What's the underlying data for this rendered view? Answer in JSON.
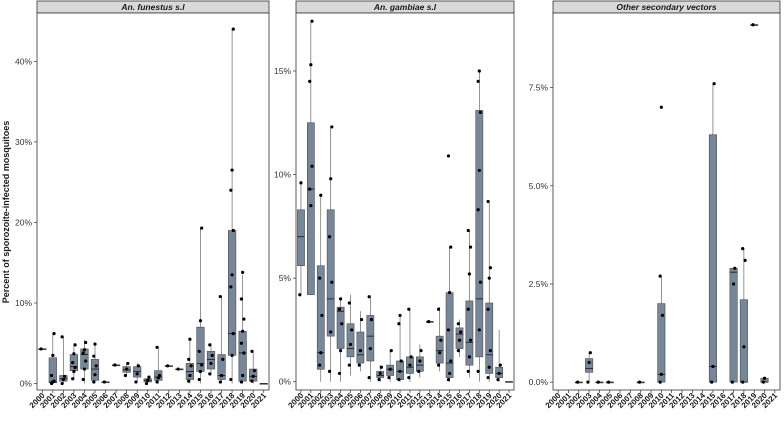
{
  "chart_data": {
    "type": "box",
    "ylabel": "Percent of sporozoite-infected mosquitoes",
    "xlabel": "",
    "box_color": "#76879a",
    "panels": [
      {
        "title": "An. funestus s.l",
        "ylim": [
          -0.8,
          46
        ],
        "yticks": [
          0,
          10,
          20,
          30,
          40
        ],
        "ytick_labels": [
          "0%",
          "10%",
          "20%",
          "30%",
          "40%"
        ],
        "categories": [
          "2000",
          "2001",
          "2002",
          "2003",
          "2004",
          "2005",
          "2006",
          "2007",
          "2008",
          "2009",
          "2010",
          "2011",
          "2012",
          "2013",
          "2014",
          "2015",
          "2016",
          "2017",
          "2018",
          "2019",
          "2020",
          "2021"
        ],
        "boxes": [
          {
            "x": "2000",
            "min": 4.3,
            "q1": 4.3,
            "median": 4.3,
            "q3": 4.3,
            "max": 4.3,
            "points": [
              4.3
            ]
          },
          {
            "x": "2001",
            "min": 0,
            "q1": 0.1,
            "median": 0.2,
            "q3": 3.2,
            "max": 6.2,
            "points": [
              0,
              0.2,
              0.3,
              1.0,
              3.5,
              6.2
            ]
          },
          {
            "x": "2002",
            "min": 0,
            "q1": 0.3,
            "median": 0.6,
            "q3": 1.0,
            "max": 5.8,
            "points": [
              0,
              0.5,
              0.9,
              5.8
            ]
          },
          {
            "x": "2003",
            "min": 0.5,
            "q1": 1.6,
            "median": 2.1,
            "q3": 3.6,
            "max": 5.0,
            "points": [
              0.6,
              1.5,
              2.0,
              2.6,
              3.7,
              4.8
            ]
          },
          {
            "x": "2004",
            "min": 0,
            "q1": 1.8,
            "median": 3.6,
            "q3": 4.3,
            "max": 5.4,
            "points": [
              0.5,
              1.8,
              2.8,
              3.8,
              4.2,
              5.1
            ]
          },
          {
            "x": "2005",
            "min": 0,
            "q1": 0.4,
            "median": 1.8,
            "q3": 3.0,
            "max": 5.1,
            "points": [
              0.2,
              1.1,
              2.2,
              3.4,
              4.9
            ]
          },
          {
            "x": "2006",
            "min": 0.2,
            "q1": 0.2,
            "median": 0.2,
            "q3": 0.2,
            "max": 0.2,
            "points": [
              0.2
            ]
          },
          {
            "x": "2007",
            "min": 2.3,
            "q1": 2.3,
            "median": 2.3,
            "q3": 2.3,
            "max": 2.3,
            "points": [
              2.3
            ]
          },
          {
            "x": "2008",
            "min": 1.0,
            "q1": 1.4,
            "median": 1.7,
            "q3": 2.1,
            "max": 2.5,
            "points": [
              1.0,
              1.8,
              2.5
            ]
          },
          {
            "x": "2009",
            "min": 0.2,
            "q1": 0.8,
            "median": 1.5,
            "q3": 2.1,
            "max": 2.5,
            "points": [
              0.2,
              1.2,
              2.2
            ]
          },
          {
            "x": "2010",
            "min": 0,
            "q1": 0.2,
            "median": 0.4,
            "q3": 0.6,
            "max": 0.8,
            "points": [
              0,
              0.4,
              0.8
            ]
          },
          {
            "x": "2011",
            "min": 0,
            "q1": 0.4,
            "median": 0.8,
            "q3": 1.6,
            "max": 4.6,
            "points": [
              0.2,
              0.7,
              1.0,
              4.5
            ]
          },
          {
            "x": "2012",
            "min": 2.2,
            "q1": 2.2,
            "median": 2.2,
            "q3": 2.2,
            "max": 2.2,
            "points": [
              2.2
            ]
          },
          {
            "x": "2013",
            "min": 1.8,
            "q1": 1.8,
            "median": 1.8,
            "q3": 1.8,
            "max": 1.8,
            "points": [
              1.8
            ]
          },
          {
            "x": "2014",
            "min": 0,
            "q1": 0.5,
            "median": 1.5,
            "q3": 2.5,
            "max": 5.5,
            "points": [
              0.3,
              1.0,
              2.2,
              3.0,
              5.5
            ]
          },
          {
            "x": "2015",
            "min": 0,
            "q1": 1.5,
            "median": 2.5,
            "q3": 7.0,
            "max": 19.2,
            "points": [
              0.5,
              1.5,
              2.3,
              4.0,
              7.8,
              19.3
            ]
          },
          {
            "x": "2016",
            "min": 1.0,
            "q1": 1.8,
            "median": 3.0,
            "q3": 4.0,
            "max": 5.0,
            "points": [
              1.2,
              2.5,
              3.5,
              4.8
            ]
          },
          {
            "x": "2017",
            "min": 0,
            "q1": 0.5,
            "median": 1.0,
            "q3": 3.6,
            "max": 10.8,
            "points": [
              0.2,
              1.0,
              3.0,
              10.8
            ]
          },
          {
            "x": "2018",
            "min": 0,
            "q1": 3.5,
            "median": 6.2,
            "q3": 19.0,
            "max": 44.0,
            "points": [
              0.5,
              3.5,
              6.2,
              12.0,
              13.5,
              19.0,
              24.0,
              26.5,
              44.0
            ]
          },
          {
            "x": "2019",
            "min": 0,
            "q1": 0.3,
            "median": 3.8,
            "q3": 6.5,
            "max": 13.5,
            "points": [
              0.2,
              1.0,
              3.8,
              5.0,
              6.5,
              8.0,
              10.5,
              13.8
            ]
          },
          {
            "x": "2020",
            "min": 0,
            "q1": 0.3,
            "median": 0.9,
            "q3": 1.8,
            "max": 4.2,
            "points": [
              0.3,
              0.9,
              1.6,
              4.0
            ]
          },
          {
            "x": "2021",
            "min": 0,
            "q1": 0,
            "median": 0,
            "q3": 0,
            "max": 0,
            "points": []
          }
        ]
      },
      {
        "title": "An. gambiae s.l",
        "ylim": [
          -0.4,
          17.8
        ],
        "yticks": [
          0,
          5,
          10,
          15
        ],
        "ytick_labels": [
          "0%",
          "5%",
          "10%",
          "15%"
        ],
        "categories": [
          "2000",
          "2001",
          "2002",
          "2003",
          "2004",
          "2005",
          "2006",
          "2007",
          "2008",
          "2009",
          "2010",
          "2011",
          "2012",
          "2013",
          "2014",
          "2015",
          "2016",
          "2017",
          "2018",
          "2019",
          "2020",
          "2021"
        ],
        "boxes": [
          {
            "x": "2000",
            "min": 4.2,
            "q1": 5.6,
            "median": 7.0,
            "q3": 8.3,
            "max": 9.7,
            "points": [
              4.2,
              9.6
            ]
          },
          {
            "x": "2001",
            "min": 4.2,
            "q1": 4.2,
            "median": 9.3,
            "q3": 12.5,
            "max": 17.4,
            "points": [
              9.3,
              8.5,
              10.4,
              14.5,
              15.3,
              17.4
            ]
          },
          {
            "x": "2002",
            "min": 0,
            "q1": 0.6,
            "median": 1.4,
            "q3": 5.6,
            "max": 9.0,
            "points": [
              0.8,
              1.4,
              3.2,
              5.0,
              9.0
            ]
          },
          {
            "x": "2003",
            "min": 0,
            "q1": 2.2,
            "median": 4.0,
            "q3": 8.3,
            "max": 12.3,
            "points": [
              0.5,
              2.4,
              4.8,
              7.0,
              9.8,
              12.3
            ]
          },
          {
            "x": "2004",
            "min": 0,
            "q1": 1.6,
            "median": 3.4,
            "q3": 3.6,
            "max": 4.0,
            "points": [
              0.4,
              1.5,
              2.8,
              3.5,
              4.0
            ]
          },
          {
            "x": "2005",
            "min": 0.3,
            "q1": 1.2,
            "median": 1.6,
            "q3": 2.8,
            "max": 4.2,
            "points": [
              0.8,
              1.8,
              2.5,
              3.8
            ]
          },
          {
            "x": "2006",
            "min": 0.5,
            "q1": 0.9,
            "median": 1.3,
            "q3": 2.4,
            "max": 3.4,
            "points": [
              0.8,
              1.5,
              3.0
            ]
          },
          {
            "x": "2007",
            "min": 0,
            "q1": 1.0,
            "median": 2.2,
            "q3": 3.2,
            "max": 4.1,
            "points": [
              0.2,
              1.6,
              3.0,
              4.1
            ]
          },
          {
            "x": "2008",
            "min": 0,
            "q1": 0.2,
            "median": 0.3,
            "q3": 0.5,
            "max": 0.8,
            "points": [
              0.1,
              0.4,
              0.7
            ]
          },
          {
            "x": "2009",
            "min": 0,
            "q1": 0.3,
            "median": 0.6,
            "q3": 0.8,
            "max": 1.5,
            "points": [
              0.2,
              0.6,
              1.5
            ]
          },
          {
            "x": "2010",
            "min": 0,
            "q1": 0.1,
            "median": 0.5,
            "q3": 1.0,
            "max": 3.2,
            "points": [
              0.1,
              0.5,
              1.0,
              2.8,
              3.2
            ]
          },
          {
            "x": "2011",
            "min": 0,
            "q1": 0.4,
            "median": 0.7,
            "q3": 1.2,
            "max": 3.5,
            "points": [
              0.2,
              0.8,
              1.2,
              3.5
            ]
          },
          {
            "x": "2012",
            "min": 0.2,
            "q1": 0.5,
            "median": 0.8,
            "q3": 1.2,
            "max": 1.8,
            "points": [
              0.5,
              1.0,
              1.5
            ]
          },
          {
            "x": "2013",
            "min": 2.9,
            "q1": 2.9,
            "median": 2.9,
            "q3": 2.9,
            "max": 2.9,
            "points": [
              2.9
            ]
          },
          {
            "x": "2014",
            "min": 0.5,
            "q1": 0.9,
            "median": 1.5,
            "q3": 2.2,
            "max": 3.6,
            "points": [
              0.8,
              1.4,
              2.0,
              3.5
            ]
          },
          {
            "x": "2015",
            "min": 0,
            "q1": 0.2,
            "median": 0.9,
            "q3": 4.3,
            "max": 6.5,
            "points": [
              0.1,
              0.4,
              1.0,
              2.5,
              4.3,
              6.5,
              10.9
            ]
          },
          {
            "x": "2016",
            "min": 1.2,
            "q1": 1.6,
            "median": 2.3,
            "q3": 2.6,
            "max": 3.0,
            "points": [
              1.5,
              2.0,
              2.4,
              2.8
            ]
          },
          {
            "x": "2017",
            "min": 0.2,
            "q1": 0.8,
            "median": 1.9,
            "q3": 3.9,
            "max": 7.3,
            "points": [
              0.5,
              1.2,
              2.0,
              3.5,
              5.2,
              6.5,
              7.3
            ]
          },
          {
            "x": "2018",
            "min": 0,
            "q1": 1.2,
            "median": 4.0,
            "q3": 13.1,
            "max": 15.0,
            "points": [
              0.5,
              2.5,
              4.8,
              8.3,
              10.2,
              13.0,
              14.5,
              15.0
            ]
          },
          {
            "x": "2019",
            "min": 0,
            "q1": 0.4,
            "median": 1.3,
            "q3": 3.8,
            "max": 8.7,
            "points": [
              0.2,
              0.7,
              1.5,
              3.5,
              5.0,
              5.5,
              8.7
            ]
          },
          {
            "x": "2020",
            "min": 0,
            "q1": 0.2,
            "median": 0.4,
            "q3": 0.7,
            "max": 2.5,
            "points": [
              0.1,
              0.4,
              0.8
            ]
          },
          {
            "x": "2021",
            "min": 0,
            "q1": 0,
            "median": 0,
            "q3": 0,
            "max": 0,
            "points": []
          }
        ]
      },
      {
        "title": "Other secondary vectors",
        "ylim": [
          -0.2,
          9.4
        ],
        "yticks": [
          0,
          2.5,
          5,
          7.5
        ],
        "ytick_labels": [
          "0.0%",
          "2.5%",
          "5.0%",
          "7.5%"
        ],
        "categories": [
          "2000",
          "2001",
          "2002",
          "2003",
          "2004",
          "2005",
          "2006",
          "2007",
          "2008",
          "2009",
          "2010",
          "2011",
          "2012",
          "2013",
          "2014",
          "2015",
          "2016",
          "2017",
          "2018",
          "2019",
          "2020",
          "2021"
        ],
        "boxes": [
          {
            "x": "2002",
            "min": 0,
            "q1": 0,
            "median": 0,
            "q3": 0,
            "max": 0,
            "points": [
              0
            ]
          },
          {
            "x": "2003",
            "min": 0,
            "q1": 0.25,
            "median": 0.35,
            "q3": 0.6,
            "max": 0.75,
            "points": [
              0,
              0.5,
              0.75
            ]
          },
          {
            "x": "2004",
            "min": 0,
            "q1": 0,
            "median": 0,
            "q3": 0,
            "max": 0,
            "points": [
              0
            ]
          },
          {
            "x": "2005",
            "min": 0,
            "q1": 0,
            "median": 0,
            "q3": 0,
            "max": 0,
            "points": [
              0
            ]
          },
          {
            "x": "2008",
            "min": 0,
            "q1": 0,
            "median": 0,
            "q3": 0,
            "max": 0,
            "points": [
              0
            ]
          },
          {
            "x": "2010",
            "min": 0,
            "q1": 0,
            "median": 0.2,
            "q3": 2.0,
            "max": 2.7,
            "points": [
              0,
              0.2,
              1.7,
              2.7,
              7.0
            ]
          },
          {
            "x": "2015",
            "min": 0,
            "q1": 0,
            "median": 0.4,
            "q3": 6.3,
            "max": 7.6,
            "points": [
              0,
              0.4,
              7.6
            ]
          },
          {
            "x": "2017",
            "min": 0,
            "q1": 0,
            "median": 2.8,
            "q3": 2.9,
            "max": 2.9,
            "points": [
              0,
              2.5,
              2.9
            ]
          },
          {
            "x": "2018",
            "min": 0,
            "q1": 0,
            "median": 0,
            "q3": 2.1,
            "max": 3.4,
            "points": [
              0,
              0.9,
              3.1,
              3.4
            ]
          },
          {
            "x": "2019",
            "min": 9.1,
            "q1": 9.1,
            "median": 9.1,
            "q3": 9.1,
            "max": 9.1,
            "points": [
              9.1
            ]
          },
          {
            "x": "2020",
            "min": 0,
            "q1": 0,
            "median": 0,
            "q3": 0.1,
            "max": 0.1,
            "points": [
              0,
              0.1
            ]
          }
        ]
      }
    ]
  }
}
